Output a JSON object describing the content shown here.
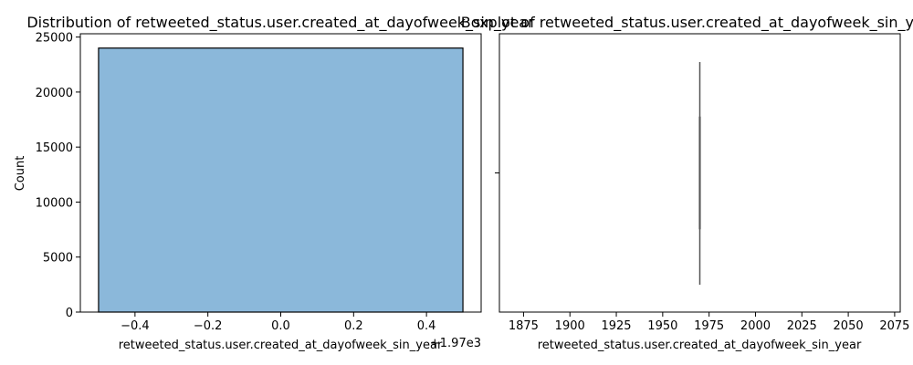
{
  "chart_data": [
    {
      "type": "bar",
      "title": "Distribution of retweeted_status.user.created_at_dayofweek_sin_year",
      "xlabel": "retweeted_status.user.created_at_dayofweek_sin_year",
      "ylabel": "Count",
      "x_offset_label": "+1.97e3",
      "xlim": [
        -0.55,
        0.55
      ],
      "ylim": [
        0,
        25300
      ],
      "x_ticks": [
        -0.4,
        -0.2,
        0.0,
        0.2,
        0.4
      ],
      "x_tick_labels": [
        "−0.4",
        "−0.2",
        "0.0",
        "0.2",
        "0.4"
      ],
      "y_ticks": [
        0,
        5000,
        10000,
        15000,
        20000,
        25000
      ],
      "y_tick_labels": [
        "0",
        "5000",
        "10000",
        "15000",
        "20000",
        "25000"
      ],
      "bins": [
        {
          "x0": -0.5,
          "x1": 0.5,
          "count": 24000
        }
      ],
      "bar_color": "#8bb8da",
      "edge_color": "#000000",
      "grid": false
    },
    {
      "type": "box",
      "title": "Boxplot of retweeted_status.user.created_at_dayofweek_sin_year",
      "xlabel": "retweeted_status.user.created_at_dayofweek_sin_year",
      "xlim": [
        1862,
        2078
      ],
      "x_ticks": [
        1875,
        1900,
        1925,
        1950,
        1975,
        2000,
        2025,
        2050,
        2075
      ],
      "x_tick_labels": [
        "1875",
        "1900",
        "1925",
        "1950",
        "1975",
        "2000",
        "2025",
        "2050",
        "2075"
      ],
      "box": {
        "min": 1970,
        "q1": 1970,
        "median": 1970,
        "q3": 1970,
        "max": 1970
      },
      "line_color": "#555555",
      "grid": false
    }
  ]
}
